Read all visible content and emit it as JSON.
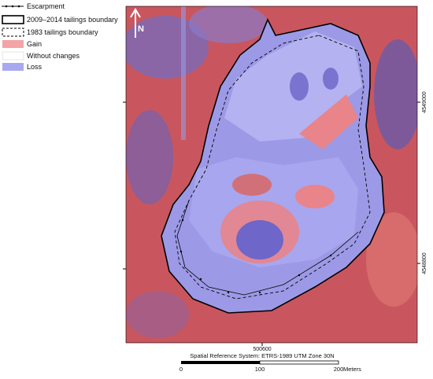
{
  "legend": {
    "items": [
      {
        "label": "Escarpment"
      },
      {
        "label": "2009–2014 tailings boundary"
      },
      {
        "label": "1983 tailings boundary"
      },
      {
        "label": "Gain"
      },
      {
        "label": "Without changes"
      },
      {
        "label": "Loss"
      }
    ]
  },
  "north_arrow": {
    "label": "N"
  },
  "coordinates": {
    "right": [
      "4549000",
      "4548800"
    ],
    "bottom": [
      "500600"
    ]
  },
  "reference_system": "Spatial Reference System: ETRS-1989 UTM Zone 30N",
  "scale_bar": {
    "labels": [
      "0",
      "100",
      "200"
    ],
    "unit": "Meters"
  }
}
